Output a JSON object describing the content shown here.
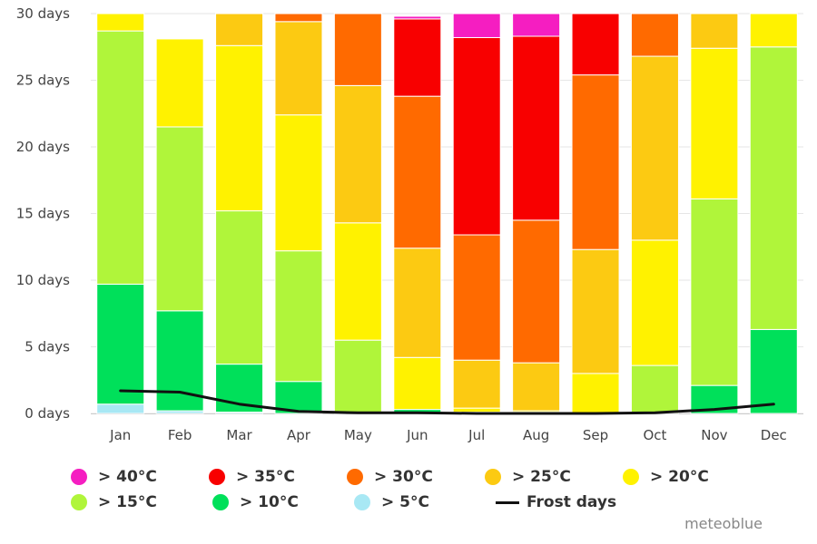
{
  "chart_data": {
    "type": "bar",
    "stacked": true,
    "categories": [
      "Jan",
      "Feb",
      "Mar",
      "Apr",
      "May",
      "Jun",
      "Jul",
      "Aug",
      "Sep",
      "Oct",
      "Nov",
      "Dec"
    ],
    "ylim": [
      0,
      30
    ],
    "yticks": [
      0,
      5,
      10,
      15,
      20,
      25,
      30
    ],
    "ytick_labels": [
      "0 days",
      "5 days",
      "10 days",
      "15 days",
      "20 days",
      "25 days",
      "30 days"
    ],
    "grid": true,
    "legend_position": "bottom",
    "series": [
      {
        "name": "> 5°C",
        "color": "#a8e8f4",
        "values": [
          0.7,
          0.2,
          0.1,
          0.0,
          0.0,
          0.0,
          0.0,
          0.0,
          0.0,
          0.0,
          0.0,
          0.0
        ]
      },
      {
        "name": "> 10°C",
        "color": "#00e05a",
        "values": [
          9.0,
          7.5,
          3.6,
          2.4,
          0.1,
          0.3,
          0.1,
          0.1,
          0.0,
          0.0,
          2.1,
          6.3
        ]
      },
      {
        "name": "> 15°C",
        "color": "#b0f53a",
        "values": [
          19.0,
          13.8,
          11.5,
          9.8,
          5.4,
          0.0,
          0.0,
          0.0,
          0.0,
          3.6,
          14.0,
          21.2
        ]
      },
      {
        "name": "> 20°C",
        "color": "#fff200",
        "values": [
          1.3,
          6.6,
          12.4,
          10.2,
          8.8,
          3.9,
          0.3,
          0.1,
          3.0,
          9.4,
          11.3,
          2.5
        ]
      },
      {
        "name": "> 25°C",
        "color": "#fcca12",
        "values": [
          0.0,
          0.0,
          2.4,
          7.0,
          10.3,
          8.2,
          3.6,
          3.6,
          9.3,
          13.8,
          2.6,
          0.0
        ]
      },
      {
        "name": "> 30°C",
        "color": "#ff6a00",
        "values": [
          0.0,
          0.0,
          0.0,
          0.6,
          5.4,
          11.4,
          9.4,
          10.7,
          13.1,
          3.2,
          0.0,
          0.0
        ]
      },
      {
        "name": "> 35°C",
        "color": "#f80000",
        "values": [
          0.0,
          0.0,
          0.0,
          0.0,
          0.0,
          5.8,
          14.8,
          13.8,
          4.6,
          0.0,
          0.0,
          0.0
        ]
      },
      {
        "name": "> 40°C",
        "color": "#f51ec1",
        "values": [
          0.0,
          0.0,
          0.0,
          0.0,
          0.0,
          0.2,
          1.8,
          1.7,
          0.0,
          0.0,
          0.0,
          0.0
        ]
      }
    ],
    "line_series": {
      "name": "Frost days",
      "color": "#111111",
      "values": [
        1.7,
        1.6,
        0.7,
        0.15,
        0.05,
        0.05,
        0.0,
        0.0,
        0.0,
        0.05,
        0.3,
        0.7
      ]
    }
  },
  "legend": {
    "rows": [
      [
        {
          "label": "> 40°C",
          "color": "#f51ec1",
          "kind": "dot"
        },
        {
          "label": "> 35°C",
          "color": "#f80000",
          "kind": "dot"
        },
        {
          "label": "> 30°C",
          "color": "#ff6a00",
          "kind": "dot"
        },
        {
          "label": "> 25°C",
          "color": "#fcca12",
          "kind": "dot"
        },
        {
          "label": "> 20°C",
          "color": "#fff200",
          "kind": "dot"
        }
      ],
      [
        {
          "label": "> 15°C",
          "color": "#b0f53a",
          "kind": "dot"
        },
        {
          "label": "> 10°C",
          "color": "#00e05a",
          "kind": "dot"
        },
        {
          "label": "> 5°C",
          "color": "#a8e8f4",
          "kind": "dot"
        },
        {
          "label": "Frost days",
          "color": "#111111",
          "kind": "line"
        }
      ]
    ]
  },
  "credit": "meteoblue"
}
